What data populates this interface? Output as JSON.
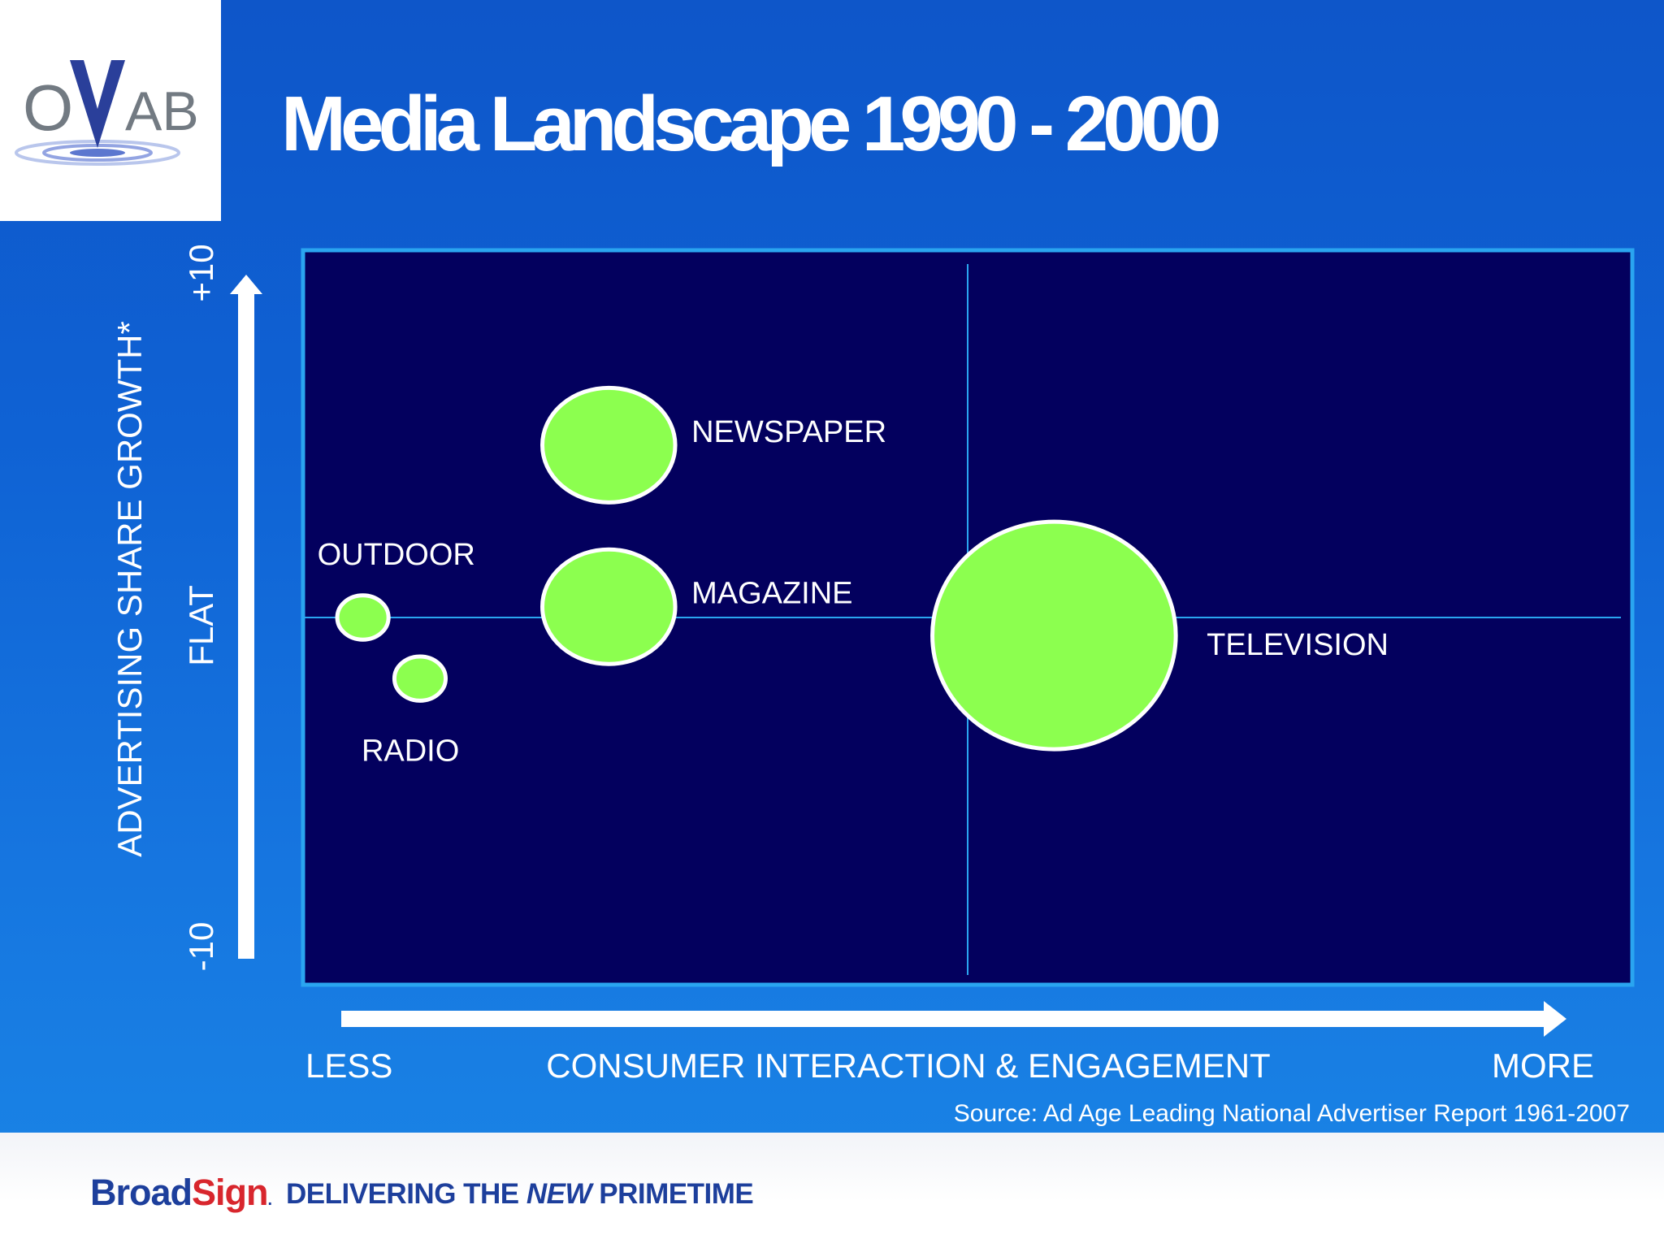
{
  "logo": {
    "text": "OVAB"
  },
  "title": "Media Landscape 1990 - 2000",
  "source": "Source:  Ad Age Leading National Advertiser Report 1961-2007",
  "footer": {
    "brand_main": "Broad",
    "brand_accent": "Sign",
    "brand_mark": ".",
    "tagline_pre": "DELIVERING THE ",
    "tagline_em": "NEW",
    "tagline_post": " PRIMETIME"
  },
  "colors": {
    "background": "#0f62d4",
    "plot_bg": "#03005e",
    "plot_border": "#2aa5f0",
    "bubble_fill": "#8cff4f",
    "bubble_stroke": "#ffffff",
    "axis_arrow": "#ffffff",
    "brand": "#1d3f9c",
    "brand_accent": "#d8262d"
  },
  "chart_data": {
    "type": "scatter",
    "subtype": "bubble",
    "xlabel": "CONSUMER INTERACTION & ENGAGEMENT",
    "x_left_label": "LESS",
    "x_right_label": "MORE",
    "ylabel": "ADVERTISING SHARE GROWTH*",
    "y_ticks": [
      {
        "value": 10,
        "label": "+10"
      },
      {
        "value": 0,
        "label": "FLAT"
      },
      {
        "value": -10,
        "label": "-10"
      }
    ],
    "xlim": [
      0,
      10
    ],
    "ylim": [
      -10,
      10
    ],
    "x_divider": 5,
    "y_divider": 0,
    "grid": false,
    "legend": "none",
    "points": [
      {
        "name": "NEWSPAPER",
        "x": 2.3,
        "y": 4.8,
        "size": 0.7,
        "label_pos": "right"
      },
      {
        "name": "MAGAZINE",
        "x": 2.3,
        "y": 0.3,
        "size": 0.7,
        "label_pos": "right"
      },
      {
        "name": "OUTDOOR",
        "x": 0.45,
        "y": 0.0,
        "size": 0.27,
        "label_pos": "above"
      },
      {
        "name": "RADIO",
        "x": 0.88,
        "y": -1.7,
        "size": 0.27,
        "label_pos": "below"
      },
      {
        "name": "TELEVISION",
        "x": 5.65,
        "y": -0.5,
        "size": 1.39,
        "label_pos": "right"
      }
    ]
  }
}
